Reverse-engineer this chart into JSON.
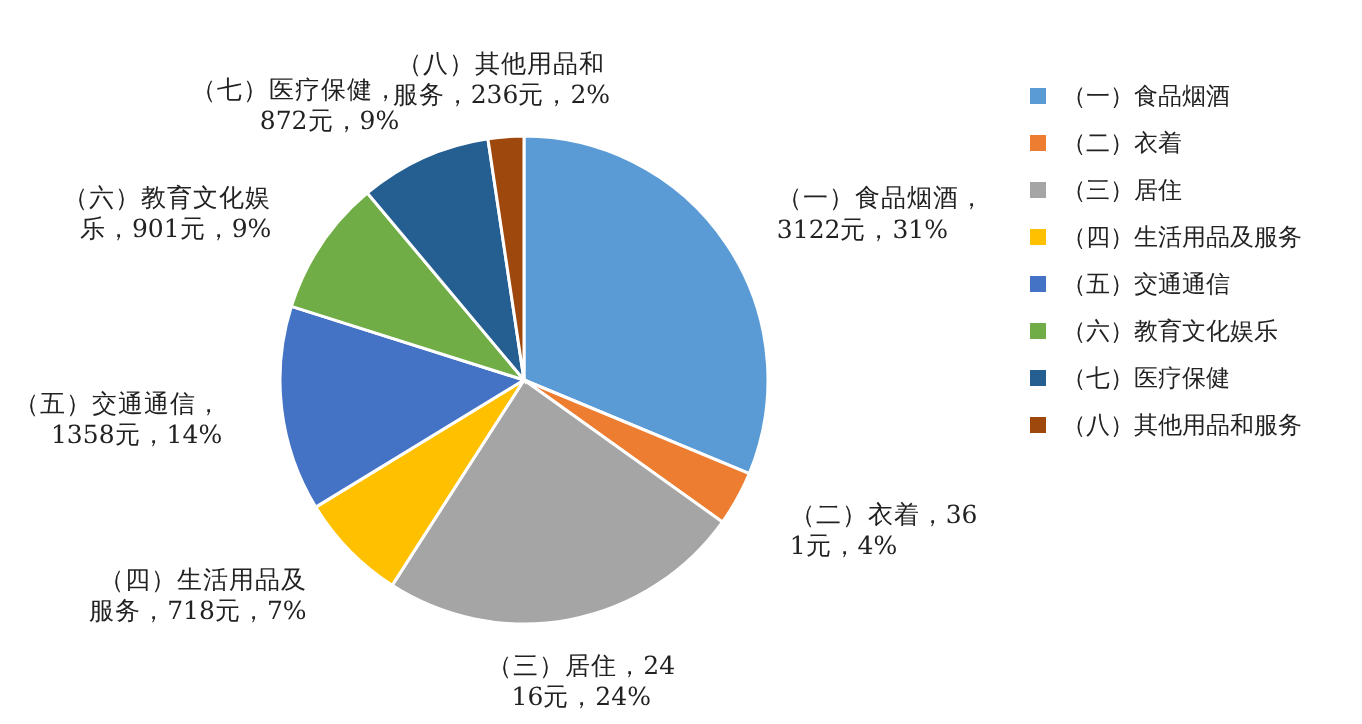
{
  "chart_data": {
    "type": "pie",
    "categories": [
      "（一）食品烟酒",
      "（二）衣着",
      "（三）居住",
      "（四）生活用品及服务",
      "（五）交通通信",
      "（六）教育文化娱乐",
      "（七）医疗保健",
      "（八）其他用品和服务"
    ],
    "values": [
      3122,
      361,
      2416,
      718,
      1358,
      901,
      872,
      236
    ],
    "value_labels": [
      "（一）食品烟酒，3122元，31%",
      "（二）衣着，361元，4%",
      "（三）居住，2416元，24%",
      "（四）生活用品及服务，718元，7%",
      "（五）交通通信，1358元，14%",
      "（六）教育文化娱乐，901元，9%",
      "（七）医疗保健，872元，9%",
      "（八）其他用品和服务，236元，2%"
    ],
    "colors": [
      "#5b9bd5",
      "#ed7d31",
      "#a5a5a5",
      "#ffc000",
      "#4472c4",
      "#70ad47",
      "#255e91",
      "#9e480e"
    ],
    "legend": "right"
  }
}
